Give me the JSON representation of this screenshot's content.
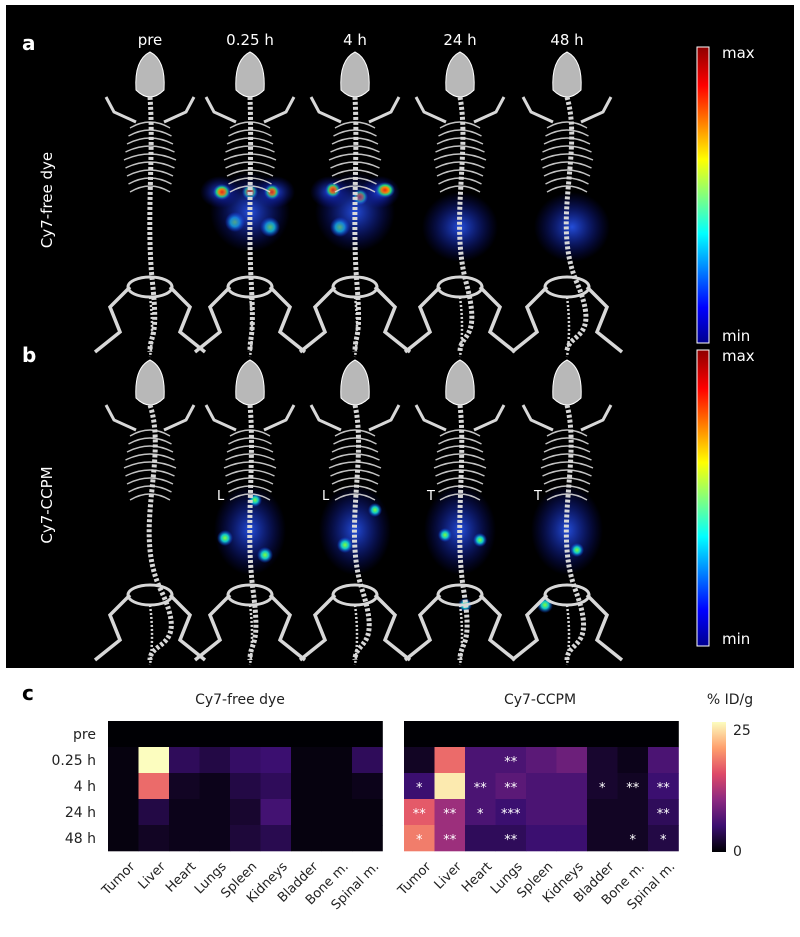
{
  "panels": {
    "a": {
      "letter": "a",
      "row_label": "Cy7-free dye"
    },
    "b": {
      "letter": "b",
      "row_label": "Cy7-CCPM"
    },
    "c": {
      "letter": "c"
    }
  },
  "timepoints": [
    "pre",
    "0.25 h",
    "4 h",
    "24 h",
    "48 h"
  ],
  "side_markers": {
    "b_0.25h": "L",
    "b_4h": "L",
    "b_24h": "T",
    "b_48h": "T"
  },
  "colorbar_fluo": {
    "max_label": "max",
    "min_label": "min"
  },
  "colors": {
    "background_dark": "#000000",
    "skeleton": "#d8d8d8",
    "colorscale_jet": [
      "#00008f",
      "#0000ff",
      "#00ffff",
      "#ffff00",
      "#ff0000",
      "#8f0000"
    ],
    "colorscale_inferno": [
      "#000004",
      "#3b0f70",
      "#8c2981",
      "#de4968",
      "#fe9f6d",
      "#fcfdbf"
    ]
  },
  "chart_data": [
    {
      "type": "heatmap",
      "title": "Cy7-free dye",
      "rows": [
        "pre",
        "0.25 h",
        "4 h",
        "24 h",
        "48 h"
      ],
      "columns": [
        "Tumor",
        "Liver",
        "Heart",
        "Lungs",
        "Spleen",
        "Kidneys",
        "Bladder",
        "Bone m.",
        "Spinal m."
      ],
      "values": [
        [
          0,
          0,
          0,
          0,
          0,
          0,
          0,
          0,
          0
        ],
        [
          0.5,
          25,
          4,
          3,
          4.5,
          5,
          0.5,
          0.5,
          4
        ],
        [
          0.5,
          17,
          1.5,
          1,
          3,
          4,
          0.5,
          0.5,
          1
        ],
        [
          0.5,
          3,
          1,
          1,
          2,
          5.5,
          0.5,
          0.5,
          0.5
        ],
        [
          0.5,
          1.5,
          1,
          1,
          2.5,
          3.5,
          0.5,
          0.5,
          0.5
        ]
      ],
      "significance": [
        [
          "",
          "",
          "",
          "",
          "",
          "",
          "",
          "",
          ""
        ],
        [
          "",
          "",
          "",
          "",
          "",
          "",
          "",
          "",
          ""
        ],
        [
          "",
          "",
          "",
          "",
          "",
          "",
          "",
          "",
          ""
        ],
        [
          "",
          "",
          "",
          "",
          "",
          "",
          "",
          "",
          ""
        ],
        [
          "",
          "",
          "",
          "",
          "",
          "",
          "",
          "",
          ""
        ]
      ]
    },
    {
      "type": "heatmap",
      "title": "Cy7-CCPM",
      "rows": [
        "pre",
        "0.25 h",
        "4 h",
        "24 h",
        "48 h"
      ],
      "columns": [
        "Tumor",
        "Liver",
        "Heart",
        "Lungs",
        "Spleen",
        "Kidneys",
        "Bladder",
        "Bone m.",
        "Spinal m."
      ],
      "values": [
        [
          0,
          0,
          0,
          0,
          0,
          0,
          0,
          0,
          0
        ],
        [
          1.5,
          17,
          6,
          6,
          7,
          8,
          2,
          1,
          6
        ],
        [
          5,
          24,
          6,
          7,
          6,
          6,
          2,
          1.5,
          5
        ],
        [
          16,
          11,
          6,
          5,
          6,
          6,
          1.5,
          1.5,
          4
        ],
        [
          18,
          11,
          4,
          4,
          5,
          5,
          1.5,
          1.5,
          3
        ]
      ],
      "significance": [
        [
          "",
          "",
          "",
          "",
          "",
          "",
          "",
          "",
          ""
        ],
        [
          "",
          "",
          "",
          "**",
          "",
          "",
          "",
          "",
          ""
        ],
        [
          "*",
          "",
          "**",
          "**",
          "",
          "",
          "*",
          "**",
          "**"
        ],
        [
          "**",
          "**",
          "*",
          "***",
          "",
          "",
          "",
          "",
          "**"
        ],
        [
          "*",
          "**",
          "",
          "**",
          "",
          "",
          "",
          "*",
          "*"
        ]
      ]
    }
  ],
  "colorbar_heatmap": {
    "unit_label": "% ID/g",
    "max_label": "25",
    "min_label": "0",
    "vmin": 0,
    "vmax": 25
  }
}
